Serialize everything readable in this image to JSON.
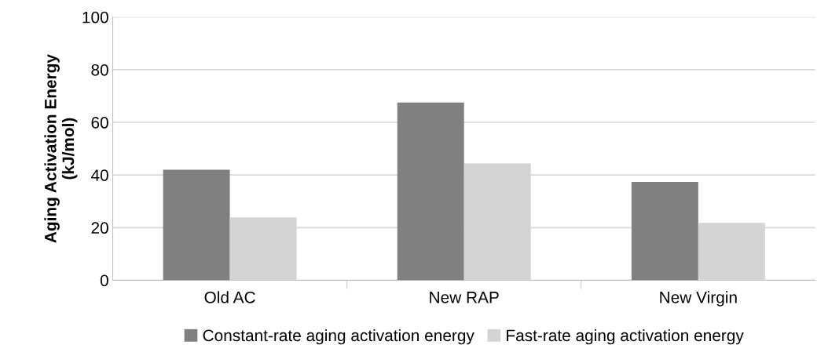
{
  "chart_data": {
    "type": "bar",
    "ylabel": "Aging Activation Energy\n(kJ/mol)",
    "categories": [
      "Old AC",
      "New RAP",
      "New Virgin"
    ],
    "series": [
      {
        "name": "Constant-rate aging activation energy",
        "color": "#808080",
        "values": [
          42.0,
          67.5,
          37.4
        ]
      },
      {
        "name": "Fast-rate aging activation energy",
        "color": "#d4d4d4",
        "values": [
          23.9,
          44.4,
          21.8
        ]
      }
    ],
    "ylim": [
      0,
      100
    ],
    "yticks": [
      0,
      20,
      40,
      60,
      80,
      100
    ],
    "grid": "y",
    "legend": "bottom"
  }
}
